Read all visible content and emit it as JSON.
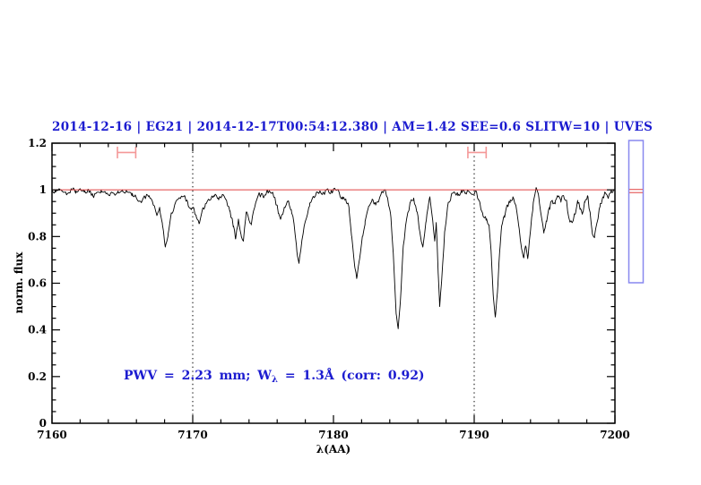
{
  "header": {
    "title": "2014-12-16 | EG21 | 2014-12-17T00:54:12.380 | AM=1.42 SEE=0.6 SLITW=10 | UVES",
    "color": "#1c1cd0"
  },
  "annotation": {
    "prefix": "PWV = 2.23 mm; W",
    "subscript": "λ",
    "suffix": " = 1.3Å (corr: 0.92)",
    "color": "#1c1cd0"
  },
  "chart_data": {
    "type": "line",
    "title": "",
    "xlabel": "λ(AA)",
    "ylabel": "norm. flux",
    "xlim": [
      7160,
      7200
    ],
    "ylim": [
      0,
      1.2
    ],
    "x_major_ticks": [
      7160,
      7170,
      7180,
      7190,
      7200
    ],
    "x_tick_labels": [
      "7160",
      "7170",
      "7180",
      "7190",
      "7200"
    ],
    "x_minor_step": 2,
    "y_major_ticks": [
      0,
      0.2,
      0.4,
      0.6,
      0.8,
      1.0,
      1.2
    ],
    "y_tick_labels": [
      "0",
      "0.2",
      "0.4",
      "0.6",
      "0.8",
      "1",
      "1.2"
    ],
    "y_minor_step": 0.05,
    "grid": false,
    "vlines": {
      "x": [
        7170,
        7190
      ],
      "style": "dotted",
      "color": "#000000"
    },
    "continuum": {
      "y": 1.0,
      "color": "#e04040"
    },
    "ew_markers": {
      "color": "#f49898",
      "y": 1.16,
      "half_height": 0.025,
      "items": [
        {
          "center": 7165.3,
          "width": 1.3
        },
        {
          "center": 7190.2,
          "width": 1.3
        }
      ]
    },
    "side_gauge": {
      "border_color": "#8888ef",
      "line_color": "#e86c6c",
      "flux_top": 1.2115,
      "flux_bottom": 0.602,
      "line_fluxes": [
        1.002,
        0.988
      ]
    },
    "series": [
      {
        "name": "spectrum",
        "color": "#000000",
        "points": [
          [
            7160,
            1.0
          ],
          [
            7160.25,
            0.99
          ],
          [
            7160.5,
            1.005
          ],
          [
            7160.8,
            0.99
          ],
          [
            7161.1,
            0.985
          ],
          [
            7161.4,
            1.0
          ],
          [
            7161.7,
            0.995
          ],
          [
            7162,
            1.005
          ],
          [
            7162.3,
            0.99
          ],
          [
            7162.6,
            1.0
          ],
          [
            7162.9,
            0.975
          ],
          [
            7163.2,
            0.99
          ],
          [
            7163.5,
            1.0
          ],
          [
            7163.8,
            0.99
          ],
          [
            7164.1,
            0.975
          ],
          [
            7164.4,
            0.985
          ],
          [
            7164.7,
            0.995
          ],
          [
            7165,
            1.0
          ],
          [
            7165.35,
            0.99
          ],
          [
            7165.7,
            0.985
          ],
          [
            7166,
            0.965
          ],
          [
            7166.35,
            0.945
          ],
          [
            7166.6,
            0.97
          ],
          [
            7166.9,
            0.975
          ],
          [
            7167.2,
            0.935
          ],
          [
            7167.45,
            0.89
          ],
          [
            7167.65,
            0.925
          ],
          [
            7167.85,
            0.85
          ],
          [
            7168.05,
            0.755
          ],
          [
            7168.25,
            0.81
          ],
          [
            7168.5,
            0.9
          ],
          [
            7168.8,
            0.95
          ],
          [
            7169.1,
            0.965
          ],
          [
            7169.4,
            0.975
          ],
          [
            7169.65,
            0.945
          ],
          [
            7169.9,
            0.915
          ],
          [
            7170.05,
            0.925
          ],
          [
            7170.25,
            0.885
          ],
          [
            7170.45,
            0.855
          ],
          [
            7170.65,
            0.905
          ],
          [
            7170.9,
            0.94
          ],
          [
            7171.2,
            0.955
          ],
          [
            7171.5,
            0.975
          ],
          [
            7171.8,
            0.965
          ],
          [
            7172.1,
            0.98
          ],
          [
            7172.4,
            0.955
          ],
          [
            7172.65,
            0.91
          ],
          [
            7172.9,
            0.845
          ],
          [
            7173.05,
            0.79
          ],
          [
            7173.25,
            0.875
          ],
          [
            7173.45,
            0.8
          ],
          [
            7173.6,
            0.78
          ],
          [
            7173.8,
            0.905
          ],
          [
            7174,
            0.87
          ],
          [
            7174.15,
            0.855
          ],
          [
            7174.4,
            0.925
          ],
          [
            7174.7,
            0.985
          ],
          [
            7175,
            0.97
          ],
          [
            7175.3,
            1.0
          ],
          [
            7175.6,
            0.985
          ],
          [
            7175.85,
            0.965
          ],
          [
            7176.1,
            0.9
          ],
          [
            7176.25,
            0.875
          ],
          [
            7176.5,
            0.925
          ],
          [
            7176.75,
            0.95
          ],
          [
            7177,
            0.915
          ],
          [
            7177.2,
            0.855
          ],
          [
            7177.4,
            0.735
          ],
          [
            7177.55,
            0.685
          ],
          [
            7177.75,
            0.78
          ],
          [
            7178,
            0.865
          ],
          [
            7178.3,
            0.93
          ],
          [
            7178.6,
            0.97
          ],
          [
            7178.9,
            0.99
          ],
          [
            7179.2,
            0.98
          ],
          [
            7179.5,
            1.0
          ],
          [
            7179.8,
            0.985
          ],
          [
            7180.1,
            1.005
          ],
          [
            7180.4,
            0.99
          ],
          [
            7180.65,
            0.96
          ],
          [
            7180.9,
            0.95
          ],
          [
            7181.1,
            0.925
          ],
          [
            7181.3,
            0.8
          ],
          [
            7181.5,
            0.675
          ],
          [
            7181.65,
            0.62
          ],
          [
            7181.85,
            0.7
          ],
          [
            7182.05,
            0.8
          ],
          [
            7182.25,
            0.865
          ],
          [
            7182.5,
            0.93
          ],
          [
            7182.75,
            0.96
          ],
          [
            7183,
            0.935
          ],
          [
            7183.3,
            0.97
          ],
          [
            7183.6,
            1.0
          ],
          [
            7183.85,
            0.965
          ],
          [
            7184.05,
            0.9
          ],
          [
            7184.25,
            0.73
          ],
          [
            7184.45,
            0.47
          ],
          [
            7184.6,
            0.405
          ],
          [
            7184.75,
            0.52
          ],
          [
            7184.95,
            0.75
          ],
          [
            7185.2,
            0.875
          ],
          [
            7185.45,
            0.945
          ],
          [
            7185.7,
            0.965
          ],
          [
            7185.95,
            0.905
          ],
          [
            7186.15,
            0.815
          ],
          [
            7186.35,
            0.755
          ],
          [
            7186.6,
            0.87
          ],
          [
            7186.85,
            0.97
          ],
          [
            7187.05,
            0.87
          ],
          [
            7187.2,
            0.78
          ],
          [
            7187.3,
            0.86
          ],
          [
            7187.45,
            0.63
          ],
          [
            7187.55,
            0.5
          ],
          [
            7187.7,
            0.625
          ],
          [
            7187.9,
            0.82
          ],
          [
            7188.1,
            0.925
          ],
          [
            7188.35,
            0.97
          ],
          [
            7188.6,
            0.99
          ],
          [
            7188.85,
            0.975
          ],
          [
            7189.1,
            1.0
          ],
          [
            7189.35,
            0.985
          ],
          [
            7189.6,
            0.995
          ],
          [
            7189.85,
            0.98
          ],
          [
            7190.1,
            0.995
          ],
          [
            7190.35,
            0.955
          ],
          [
            7190.6,
            0.9
          ],
          [
            7190.85,
            0.87
          ],
          [
            7191.05,
            0.85
          ],
          [
            7191.2,
            0.74
          ],
          [
            7191.35,
            0.55
          ],
          [
            7191.5,
            0.455
          ],
          [
            7191.65,
            0.56
          ],
          [
            7191.8,
            0.73
          ],
          [
            7191.95,
            0.845
          ],
          [
            7192.15,
            0.89
          ],
          [
            7192.35,
            0.935
          ],
          [
            7192.55,
            0.945
          ],
          [
            7192.75,
            0.97
          ],
          [
            7192.95,
            0.935
          ],
          [
            7193.15,
            0.85
          ],
          [
            7193.35,
            0.755
          ],
          [
            7193.5,
            0.71
          ],
          [
            7193.65,
            0.76
          ],
          [
            7193.8,
            0.705
          ],
          [
            7194,
            0.825
          ],
          [
            7194.2,
            0.945
          ],
          [
            7194.4,
            1.01
          ],
          [
            7194.6,
            0.965
          ],
          [
            7194.8,
            0.875
          ],
          [
            7194.95,
            0.815
          ],
          [
            7195.15,
            0.865
          ],
          [
            7195.35,
            0.925
          ],
          [
            7195.55,
            0.955
          ],
          [
            7195.75,
            0.94
          ],
          [
            7195.95,
            0.97
          ],
          [
            7196.15,
            0.955
          ],
          [
            7196.35,
            0.975
          ],
          [
            7196.55,
            0.955
          ],
          [
            7196.75,
            0.875
          ],
          [
            7196.95,
            0.86
          ],
          [
            7197.15,
            0.895
          ],
          [
            7197.35,
            0.955
          ],
          [
            7197.55,
            0.92
          ],
          [
            7197.7,
            0.9
          ],
          [
            7197.85,
            0.945
          ],
          [
            7198.05,
            0.975
          ],
          [
            7198.25,
            0.895
          ],
          [
            7198.4,
            0.81
          ],
          [
            7198.55,
            0.795
          ],
          [
            7198.75,
            0.865
          ],
          [
            7198.95,
            0.93
          ],
          [
            7199.15,
            0.97
          ],
          [
            7199.35,
            0.985
          ],
          [
            7199.55,
            0.97
          ],
          [
            7199.75,
            1.0
          ],
          [
            7200,
            1.0
          ]
        ]
      }
    ]
  }
}
